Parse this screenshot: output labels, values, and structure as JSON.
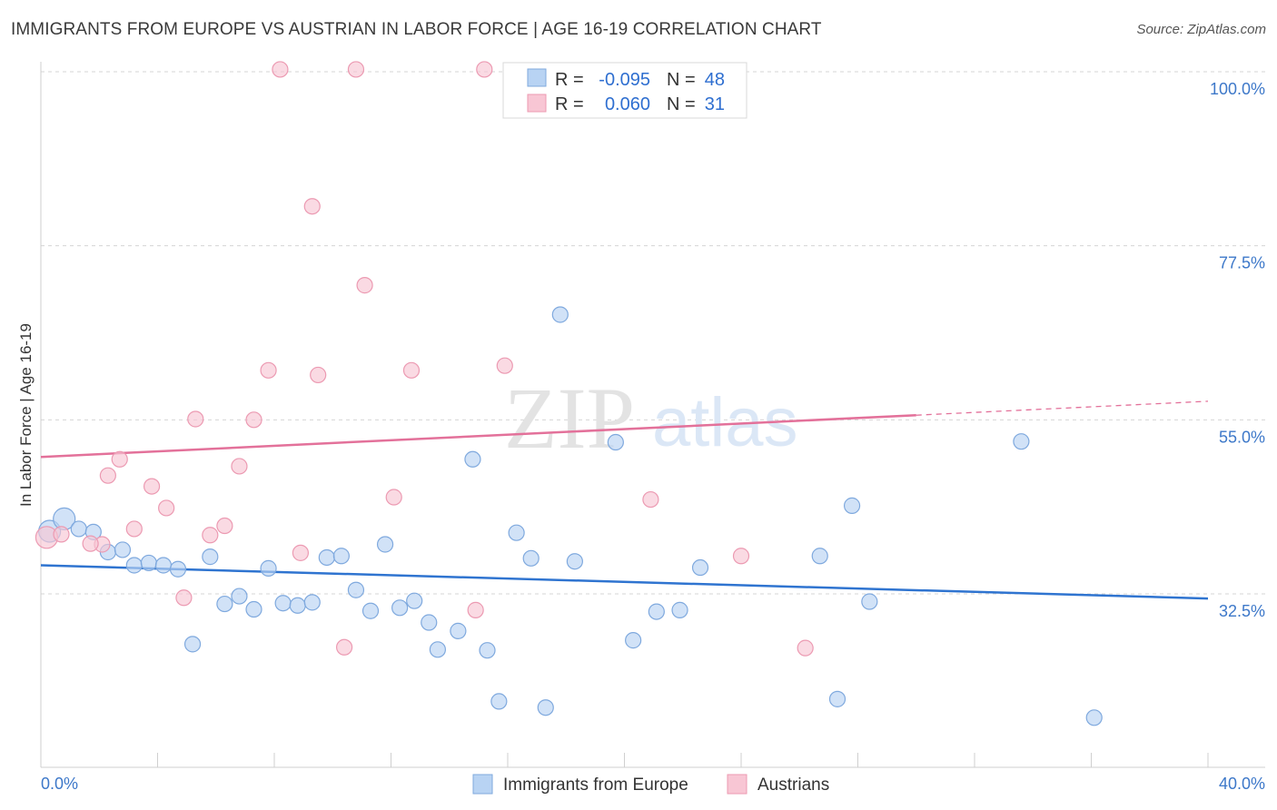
{
  "header": {
    "title": "IMMIGRANTS FROM EUROPE VS AUSTRIAN IN LABOR FORCE | AGE 16-19 CORRELATION CHART",
    "source": "Source: ZipAtlas.com"
  },
  "watermark": {
    "zip": "ZIP",
    "atlas": "atlas"
  },
  "colors": {
    "blue_fill": "#b8d3f3",
    "blue_stroke": "#7fa9de",
    "blue_line": "#2f74d0",
    "pink_fill": "#f8c6d4",
    "pink_stroke": "#ec9ab2",
    "pink_line": "#e3719a",
    "axis_text": "#3d78c9",
    "grid": "#d5d5d5"
  },
  "chart_data": {
    "type": "scatter",
    "title": "IMMIGRANTS FROM EUROPE VS AUSTRIAN IN LABOR FORCE | AGE 16-19 CORRELATION CHART",
    "xlabel": "",
    "ylabel": "In Labor Force | Age 16-19",
    "xlim": [
      0,
      40
    ],
    "ylim": [
      10,
      102
    ],
    "x_tick_labels": {
      "min": "0.0%",
      "max": "40.0%"
    },
    "y_ticks": [
      {
        "value": 100,
        "label": "100.0%"
      },
      {
        "value": 77.5,
        "label": "77.5%"
      },
      {
        "value": 55,
        "label": "55.0%"
      },
      {
        "value": 32.5,
        "label": "32.5%"
      }
    ],
    "correlation_box": [
      {
        "r_label": "R =",
        "r": "-0.095",
        "n_label": "N =",
        "n": "48"
      },
      {
        "r_label": "R =",
        "r": "0.060",
        "n_label": "N =",
        "n": "31"
      }
    ],
    "series": [
      {
        "name": "Immigrants from Europe",
        "color": "blue",
        "trend": {
          "x0": 0,
          "y0": 36.2,
          "x1": 40,
          "y1": 31.9,
          "solid_until": 40
        },
        "points": [
          {
            "x": 0.3,
            "y": 40.6,
            "big": true
          },
          {
            "x": 0.8,
            "y": 42.2,
            "big": true
          },
          {
            "x": 1.3,
            "y": 40.9
          },
          {
            "x": 1.8,
            "y": 40.5
          },
          {
            "x": 2.3,
            "y": 37.9
          },
          {
            "x": 2.8,
            "y": 38.2
          },
          {
            "x": 3.2,
            "y": 36.2
          },
          {
            "x": 3.7,
            "y": 36.5
          },
          {
            "x": 4.2,
            "y": 36.2
          },
          {
            "x": 4.7,
            "y": 35.7
          },
          {
            "x": 5.2,
            "y": 26.0
          },
          {
            "x": 5.8,
            "y": 37.3
          },
          {
            "x": 6.3,
            "y": 31.2
          },
          {
            "x": 6.8,
            "y": 32.2
          },
          {
            "x": 7.3,
            "y": 30.5
          },
          {
            "x": 7.8,
            "y": 35.8
          },
          {
            "x": 8.3,
            "y": 31.3
          },
          {
            "x": 8.8,
            "y": 31.0
          },
          {
            "x": 9.3,
            "y": 31.4
          },
          {
            "x": 9.8,
            "y": 37.2
          },
          {
            "x": 10.3,
            "y": 37.4
          },
          {
            "x": 10.8,
            "y": 33.0
          },
          {
            "x": 11.3,
            "y": 30.3
          },
          {
            "x": 11.8,
            "y": 38.9
          },
          {
            "x": 12.3,
            "y": 30.7
          },
          {
            "x": 12.8,
            "y": 31.6
          },
          {
            "x": 13.3,
            "y": 28.8
          },
          {
            "x": 13.6,
            "y": 25.3
          },
          {
            "x": 14.3,
            "y": 27.7
          },
          {
            "x": 14.8,
            "y": 49.9
          },
          {
            "x": 15.3,
            "y": 25.2
          },
          {
            "x": 15.7,
            "y": 18.6
          },
          {
            "x": 16.3,
            "y": 40.4
          },
          {
            "x": 16.8,
            "y": 37.1
          },
          {
            "x": 17.3,
            "y": 17.8
          },
          {
            "x": 17.8,
            "y": 68.6
          },
          {
            "x": 18.3,
            "y": 36.7
          },
          {
            "x": 19.7,
            "y": 52.1
          },
          {
            "x": 20.3,
            "y": 26.5
          },
          {
            "x": 21.1,
            "y": 30.2
          },
          {
            "x": 21.9,
            "y": 30.4
          },
          {
            "x": 22.6,
            "y": 35.9
          },
          {
            "x": 26.7,
            "y": 37.4
          },
          {
            "x": 27.3,
            "y": 18.9
          },
          {
            "x": 27.8,
            "y": 43.9
          },
          {
            "x": 28.4,
            "y": 31.5
          },
          {
            "x": 33.6,
            "y": 52.2
          },
          {
            "x": 36.1,
            "y": 16.5
          }
        ]
      },
      {
        "name": "Austrians",
        "color": "pink",
        "trend": {
          "x0": 0,
          "y0": 50.2,
          "x1": 40,
          "y1": 57.4,
          "solid_until": 30
        },
        "points": [
          {
            "x": 0.2,
            "y": 39.8,
            "big": true
          },
          {
            "x": 0.7,
            "y": 40.2
          },
          {
            "x": 2.1,
            "y": 38.9
          },
          {
            "x": 2.3,
            "y": 47.8
          },
          {
            "x": 1.7,
            "y": 39.0
          },
          {
            "x": 2.7,
            "y": 49.9
          },
          {
            "x": 3.2,
            "y": 40.9
          },
          {
            "x": 3.8,
            "y": 46.4
          },
          {
            "x": 4.3,
            "y": 43.6
          },
          {
            "x": 4.9,
            "y": 32.0
          },
          {
            "x": 5.3,
            "y": 55.1
          },
          {
            "x": 5.8,
            "y": 40.1
          },
          {
            "x": 6.3,
            "y": 41.3
          },
          {
            "x": 6.8,
            "y": 49.0
          },
          {
            "x": 7.3,
            "y": 55.0
          },
          {
            "x": 7.8,
            "y": 61.4
          },
          {
            "x": 8.2,
            "y": 100.3
          },
          {
            "x": 8.9,
            "y": 37.8
          },
          {
            "x": 9.3,
            "y": 82.6
          },
          {
            "x": 9.5,
            "y": 60.8
          },
          {
            "x": 10.4,
            "y": 25.6
          },
          {
            "x": 10.8,
            "y": 100.3
          },
          {
            "x": 11.1,
            "y": 72.4
          },
          {
            "x": 12.1,
            "y": 45.0
          },
          {
            "x": 12.7,
            "y": 61.4
          },
          {
            "x": 14.9,
            "y": 30.4
          },
          {
            "x": 15.2,
            "y": 100.3
          },
          {
            "x": 15.9,
            "y": 62.0
          },
          {
            "x": 20.9,
            "y": 44.7
          },
          {
            "x": 24.0,
            "y": 37.4
          },
          {
            "x": 26.2,
            "y": 25.5
          }
        ]
      }
    ]
  }
}
